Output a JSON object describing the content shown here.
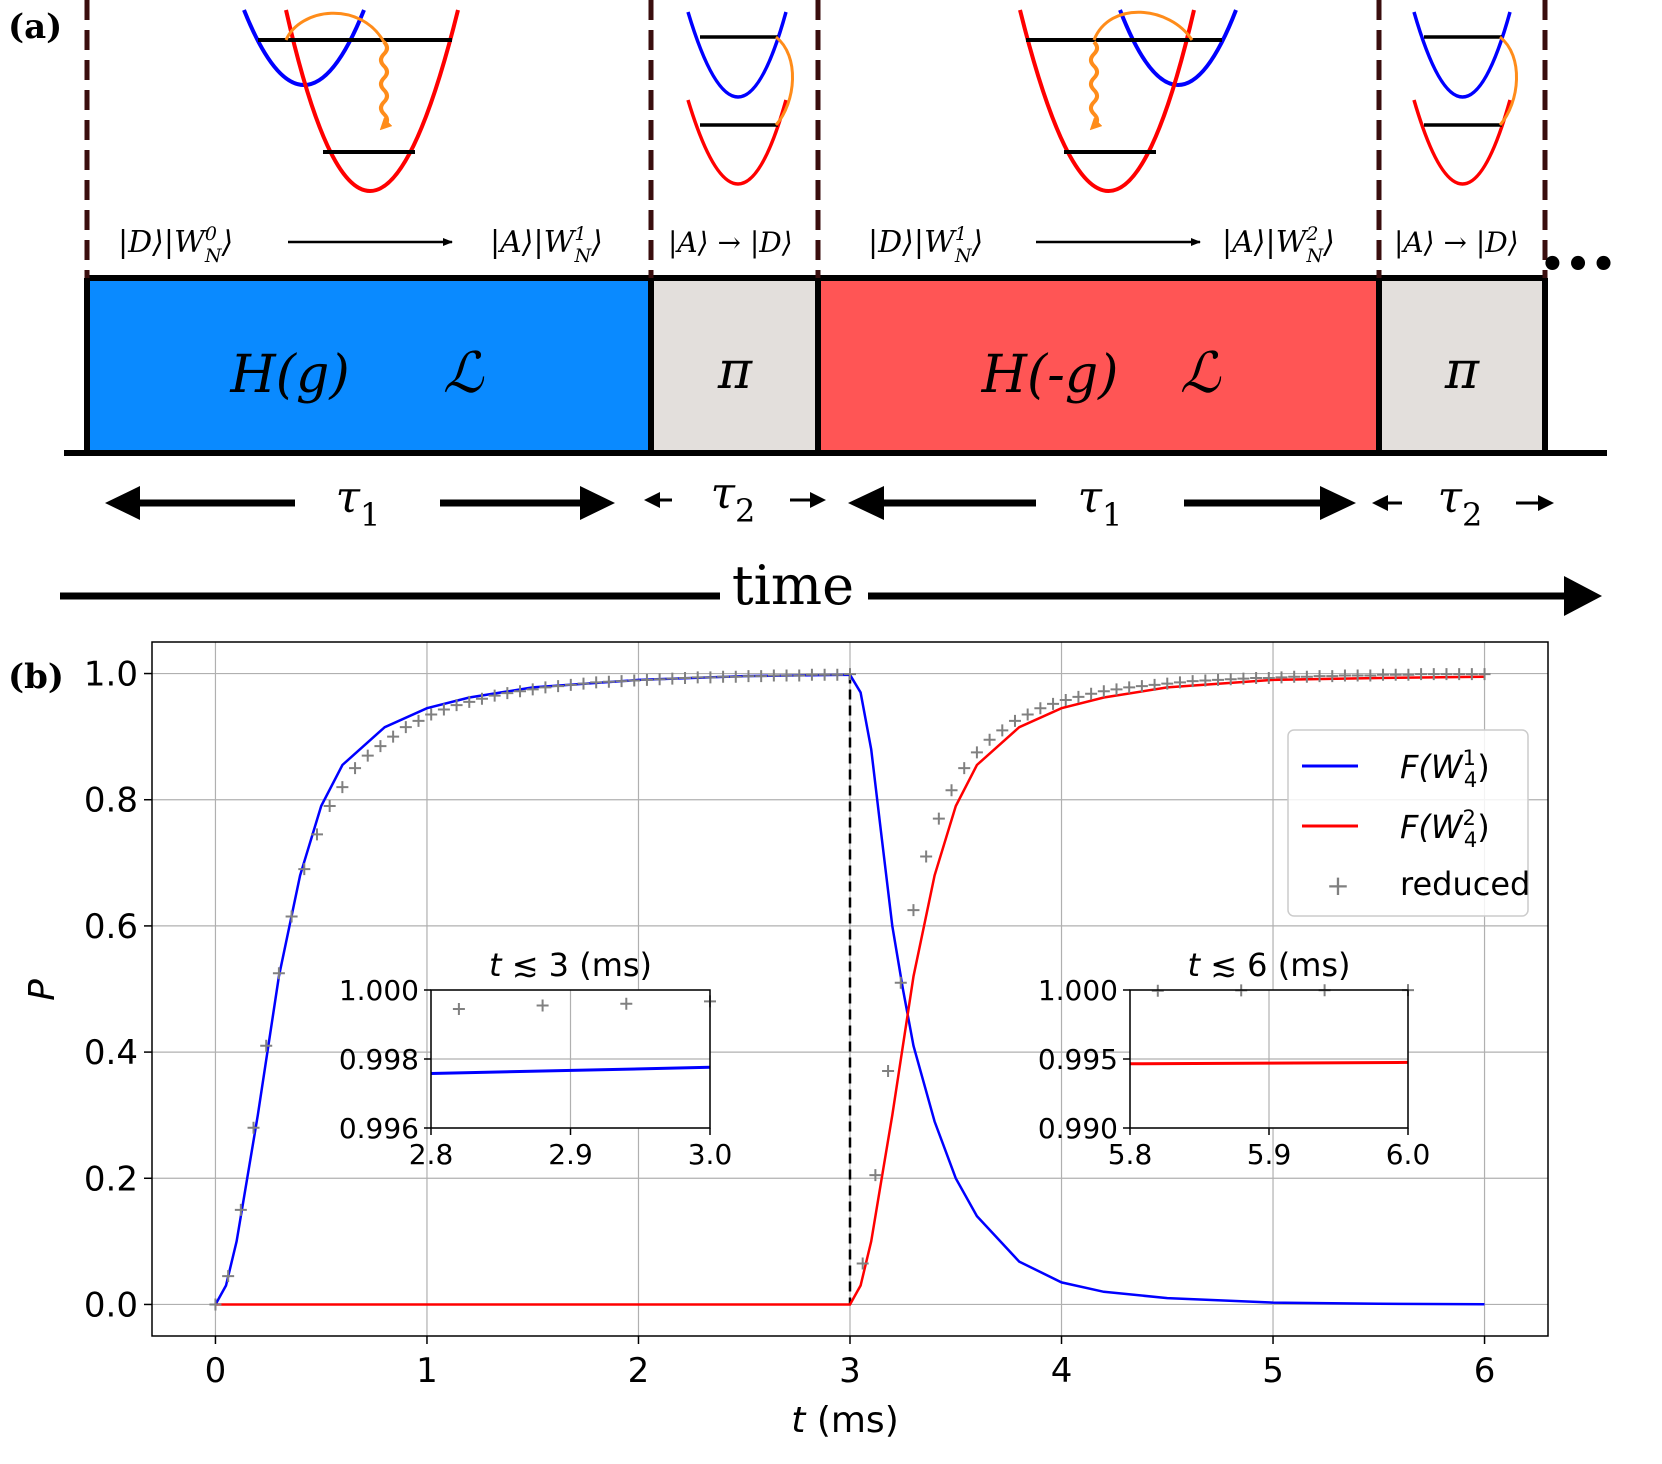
{
  "panel_a": {
    "label": "(a)",
    "segments": [
      {
        "id": "seg1",
        "text1": "H(g)",
        "text2": "ℒ",
        "color": "#0a8aff",
        "start_state": "|D⟩|W_N^0⟩",
        "end_state": "|A⟩|W_N^1⟩",
        "start_state_rich": "|D⟩|W",
        "start_sup": "0",
        "start_sub": "N",
        "end_state_rich": "|A⟩|W",
        "end_sup": "1",
        "end_sub": "N"
      },
      {
        "id": "pulse1",
        "text1": "π",
        "color": "#e3dfdc",
        "transition": "|A⟩ → |D⟩"
      },
      {
        "id": "seg2",
        "text1": "H(-g)",
        "text2": "ℒ",
        "color": "#ff5555",
        "start_state": "|D⟩|W_N^1⟩",
        "end_state": "|A⟩|W_N^2⟩",
        "start_state_rich": "|D⟩|W",
        "start_sup": "1",
        "start_sub": "N",
        "end_state_rich": "|A⟩|W",
        "end_sup": "2",
        "end_sub": "N"
      },
      {
        "id": "pulse2",
        "text1": "π",
        "color": "#e3dfdc",
        "transition": "|A⟩ → |D⟩"
      }
    ],
    "durations": [
      {
        "symbol": "τ",
        "sub": "1"
      },
      {
        "symbol": "τ",
        "sub": "2"
      },
      {
        "symbol": "τ",
        "sub": "1"
      },
      {
        "symbol": "τ",
        "sub": "2"
      }
    ],
    "ellipsis": "•••",
    "time_label": "time"
  },
  "panel_b": {
    "label": "(b)",
    "chart_data": {
      "type": "line",
      "xlabel": "t (ms)",
      "ylabel": "P",
      "xlim": [
        -0.3,
        6.3
      ],
      "ylim": [
        -0.05,
        1.05
      ],
      "xticks": [
        "0",
        "1",
        "2",
        "3",
        "4",
        "5",
        "6"
      ],
      "yticks": [
        "0.0",
        "0.2",
        "0.4",
        "0.6",
        "0.8",
        "1.0"
      ],
      "grid": true,
      "legend_position": "right",
      "vline_x": 3,
      "series": [
        {
          "name": "F(W_4^1)",
          "legend_base": "F(W",
          "legend_sup": "1",
          "legend_sub": "4",
          "color": "#0000ff",
          "x": [
            0,
            0.05,
            0.1,
            0.15,
            0.2,
            0.3,
            0.4,
            0.5,
            0.6,
            0.8,
            1.0,
            1.2,
            1.5,
            2.0,
            2.5,
            3.0,
            3.05,
            3.1,
            3.15,
            3.2,
            3.25,
            3.3,
            3.4,
            3.5,
            3.6,
            3.8,
            4.0,
            4.2,
            4.5,
            5.0,
            5.5,
            6.0
          ],
          "y": [
            0,
            0.03,
            0.1,
            0.2,
            0.3,
            0.52,
            0.68,
            0.79,
            0.855,
            0.915,
            0.945,
            0.962,
            0.978,
            0.99,
            0.996,
            0.998,
            0.97,
            0.88,
            0.74,
            0.6,
            0.5,
            0.41,
            0.29,
            0.2,
            0.14,
            0.068,
            0.035,
            0.02,
            0.01,
            0.003,
            0.001,
            0.0003
          ]
        },
        {
          "name": "F(W_4^2)",
          "legend_base": "F(W",
          "legend_sup": "2",
          "legend_sub": "4",
          "color": "#ff0000",
          "x": [
            0,
            1,
            2,
            3.0,
            3.05,
            3.1,
            3.15,
            3.2,
            3.3,
            3.4,
            3.5,
            3.6,
            3.8,
            4.0,
            4.2,
            4.5,
            5.0,
            5.5,
            6.0
          ],
          "y": [
            0,
            0,
            0,
            0,
            0.03,
            0.1,
            0.2,
            0.3,
            0.52,
            0.68,
            0.79,
            0.855,
            0.915,
            0.945,
            0.962,
            0.978,
            0.99,
            0.993,
            0.995
          ]
        },
        {
          "name": "reduced",
          "marker": "+",
          "color": "#808080",
          "x": [
            0,
            0.06,
            0.12,
            0.18,
            0.24,
            0.3,
            0.36,
            0.42,
            0.48,
            0.54,
            0.6,
            0.66,
            0.72,
            0.78,
            0.84,
            0.9,
            0.96,
            1.02,
            1.08,
            1.14,
            1.2,
            1.26,
            1.32,
            1.38,
            1.44,
            1.5,
            1.56,
            1.62,
            1.68,
            1.74,
            1.8,
            1.86,
            1.92,
            1.98,
            2.04,
            2.1,
            2.16,
            2.22,
            2.28,
            2.34,
            2.4,
            2.46,
            2.52,
            2.58,
            2.64,
            2.7,
            2.76,
            2.82,
            2.88,
            2.94,
            3.0,
            3.06,
            3.12,
            3.18,
            3.24,
            3.3,
            3.36,
            3.42,
            3.48,
            3.54,
            3.6,
            3.66,
            3.72,
            3.78,
            3.84,
            3.9,
            3.96,
            4.02,
            4.08,
            4.14,
            4.2,
            4.26,
            4.32,
            4.38,
            4.44,
            4.5,
            4.56,
            4.62,
            4.68,
            4.74,
            4.8,
            4.86,
            4.92,
            4.98,
            5.04,
            5.1,
            5.16,
            5.22,
            5.28,
            5.34,
            5.4,
            5.46,
            5.52,
            5.58,
            5.64,
            5.7,
            5.76,
            5.82,
            5.88,
            5.94,
            6.0
          ],
          "y": [
            0,
            0.045,
            0.15,
            0.28,
            0.41,
            0.525,
            0.615,
            0.69,
            0.745,
            0.79,
            0.82,
            0.85,
            0.87,
            0.885,
            0.9,
            0.915,
            0.925,
            0.935,
            0.943,
            0.95,
            0.955,
            0.96,
            0.965,
            0.969,
            0.972,
            0.975,
            0.978,
            0.98,
            0.982,
            0.984,
            0.986,
            0.987,
            0.988,
            0.989,
            0.99,
            0.991,
            0.992,
            0.993,
            0.994,
            0.994,
            0.995,
            0.995,
            0.996,
            0.996,
            0.997,
            0.997,
            0.997,
            0.998,
            0.998,
            0.998,
            0.999,
            0.065,
            0.205,
            0.37,
            0.51,
            0.625,
            0.71,
            0.77,
            0.815,
            0.85,
            0.875,
            0.895,
            0.91,
            0.925,
            0.935,
            0.945,
            0.952,
            0.958,
            0.963,
            0.968,
            0.972,
            0.975,
            0.978,
            0.98,
            0.982,
            0.984,
            0.986,
            0.988,
            0.989,
            0.99,
            0.991,
            0.992,
            0.993,
            0.993,
            0.994,
            0.995,
            0.995,
            0.996,
            0.996,
            0.997,
            0.997,
            0.997,
            0.998,
            0.998,
            0.998,
            0.999,
            0.999,
            0.999,
            0.999,
            0.999,
            0.999
          ]
        }
      ]
    },
    "insets": [
      {
        "title": "t ≲ 3 (ms)",
        "xlim": [
          2.8,
          3.0
        ],
        "ylim": [
          0.996,
          1.0
        ],
        "xticks": [
          "2.8",
          "2.9",
          "3.0"
        ],
        "yticks": [
          "0.996",
          "0.998",
          "1.000"
        ],
        "line": {
          "color": "#0000ff",
          "x": [
            2.8,
            3.0
          ],
          "y": [
            0.99758,
            0.99776
          ]
        },
        "marks": {
          "x": [
            2.82,
            2.88,
            2.94,
            3.0
          ],
          "y": [
            0.99945,
            0.99955,
            0.9996,
            0.99967
          ]
        }
      },
      {
        "title": "t ≲ 6 (ms)",
        "xlim": [
          5.8,
          6.0
        ],
        "ylim": [
          0.99,
          1.0
        ],
        "xticks": [
          "5.8",
          "5.9",
          "6.0"
        ],
        "yticks": [
          "0.990",
          "0.995",
          "1.000"
        ],
        "line": {
          "color": "#ff0000",
          "x": [
            5.8,
            6.0
          ],
          "y": [
            0.99465,
            0.99475
          ]
        },
        "marks": {
          "x": [
            5.82,
            5.88,
            5.94,
            6.0
          ],
          "y": [
            0.99995,
            0.99997,
            0.99998,
            0.99999
          ]
        }
      }
    ]
  }
}
